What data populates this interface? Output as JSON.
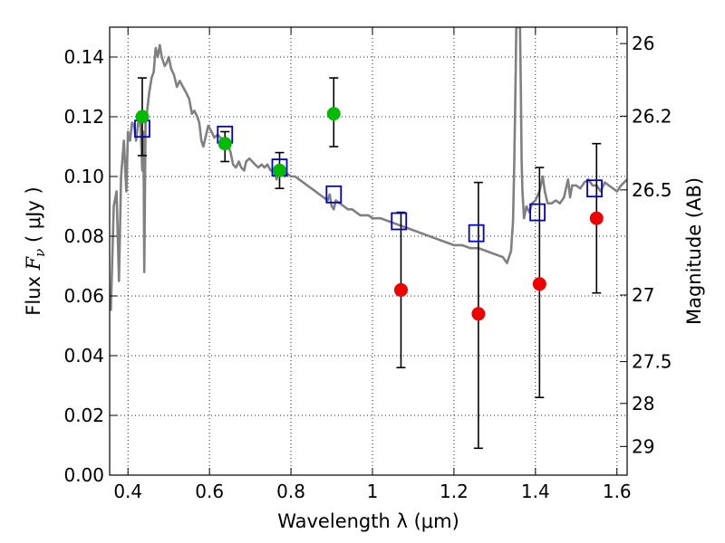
{
  "chart_data": {
    "type": "scatter",
    "xlabel": "Wavelength  λ (μm)",
    "ylabel": "Flux  F_ν  ( μJy )",
    "ylabel_parts": {
      "prefix": "Flux ",
      "symbol": "F",
      "subscript": "ν",
      "suffix": " ( μJy )"
    },
    "y2label": "Magnitude (AB)",
    "xlim": [
      0.355,
      1.625
    ],
    "ylim": [
      0.0,
      0.15
    ],
    "grid": true,
    "x_ticks": [
      {
        "value": 0.4,
        "label": "0.4"
      },
      {
        "value": 0.6,
        "label": "0.6"
      },
      {
        "value": 0.8,
        "label": "0.8"
      },
      {
        "value": 1.0,
        "label": "1"
      },
      {
        "value": 1.2,
        "label": "1.2"
      },
      {
        "value": 1.4,
        "label": "1.4"
      },
      {
        "value": 1.6,
        "label": "1.6"
      }
    ],
    "y_ticks": [
      {
        "value": 0.0,
        "label": "0.00"
      },
      {
        "value": 0.02,
        "label": "0.02"
      },
      {
        "value": 0.04,
        "label": "0.04"
      },
      {
        "value": 0.06,
        "label": "0.06"
      },
      {
        "value": 0.08,
        "label": "0.08"
      },
      {
        "value": 0.1,
        "label": "0.10"
      },
      {
        "value": 0.12,
        "label": "0.12"
      },
      {
        "value": 0.14,
        "label": "0.14"
      }
    ],
    "y2_ticks": [
      {
        "flux": 0.1445,
        "label": "26"
      },
      {
        "flux": 0.1202,
        "label": "26.2"
      },
      {
        "flux": 0.0955,
        "label": "26.5"
      },
      {
        "flux": 0.0603,
        "label": "27"
      },
      {
        "flux": 0.038,
        "label": "27.5"
      },
      {
        "flux": 0.024,
        "label": "28"
      },
      {
        "flux": 0.0096,
        "label": "29"
      }
    ],
    "series": [
      {
        "kind": "line",
        "color": "#808080",
        "points": [
          [
            0.358,
            0.055
          ],
          [
            0.365,
            0.09
          ],
          [
            0.372,
            0.095
          ],
          [
            0.378,
            0.065
          ],
          [
            0.383,
            0.1
          ],
          [
            0.39,
            0.112
          ],
          [
            0.396,
            0.095
          ],
          [
            0.4,
            0.115
          ],
          [
            0.405,
            0.112
          ],
          [
            0.41,
            0.118
          ],
          [
            0.415,
            0.117
          ],
          [
            0.42,
            0.112
          ],
          [
            0.425,
            0.118
          ],
          [
            0.43,
            0.12
          ],
          [
            0.435,
            0.102
          ],
          [
            0.438,
            0.115
          ],
          [
            0.44,
            0.068
          ],
          [
            0.443,
            0.118
          ],
          [
            0.447,
            0.122
          ],
          [
            0.452,
            0.128
          ],
          [
            0.458,
            0.133
          ],
          [
            0.463,
            0.135
          ],
          [
            0.468,
            0.143
          ],
          [
            0.473,
            0.14
          ],
          [
            0.478,
            0.144
          ],
          [
            0.483,
            0.14
          ],
          [
            0.49,
            0.137
          ],
          [
            0.495,
            0.138
          ],
          [
            0.5,
            0.14
          ],
          [
            0.506,
            0.136
          ],
          [
            0.513,
            0.134
          ],
          [
            0.52,
            0.13
          ],
          [
            0.527,
            0.132
          ],
          [
            0.535,
            0.13
          ],
          [
            0.543,
            0.128
          ],
          [
            0.55,
            0.126
          ],
          [
            0.557,
            0.121
          ],
          [
            0.563,
            0.122
          ],
          [
            0.57,
            0.12
          ],
          [
            0.575,
            0.118
          ],
          [
            0.58,
            0.112
          ],
          [
            0.585,
            0.11
          ],
          [
            0.59,
            0.113
          ],
          [
            0.597,
            0.117
          ],
          [
            0.605,
            0.115
          ],
          [
            0.612,
            0.113
          ],
          [
            0.62,
            0.114
          ],
          [
            0.627,
            0.113
          ],
          [
            0.633,
            0.112
          ],
          [
            0.64,
            0.113
          ],
          [
            0.645,
            0.111
          ],
          [
            0.652,
            0.108
          ],
          [
            0.658,
            0.104
          ],
          [
            0.665,
            0.103
          ],
          [
            0.672,
            0.105
          ],
          [
            0.678,
            0.103
          ],
          [
            0.685,
            0.102
          ],
          [
            0.69,
            0.105
          ],
          [
            0.698,
            0.106
          ],
          [
            0.705,
            0.105
          ],
          [
            0.712,
            0.104
          ],
          [
            0.72,
            0.103
          ],
          [
            0.728,
            0.104
          ],
          [
            0.735,
            0.103
          ],
          [
            0.742,
            0.104
          ],
          [
            0.75,
            0.102
          ],
          [
            0.758,
            0.102
          ],
          [
            0.765,
            0.099
          ],
          [
            0.77,
            0.103
          ],
          [
            0.778,
            0.101
          ],
          [
            0.785,
            0.1
          ],
          [
            0.79,
            0.101
          ],
          [
            0.8,
            0.1
          ],
          [
            0.81,
            0.1
          ],
          [
            0.82,
            0.099
          ],
          [
            0.83,
            0.098
          ],
          [
            0.84,
            0.097
          ],
          [
            0.85,
            0.096
          ],
          [
            0.86,
            0.095
          ],
          [
            0.87,
            0.094
          ],
          [
            0.88,
            0.093
          ],
          [
            0.89,
            0.092
          ],
          [
            0.895,
            0.094
          ],
          [
            0.9,
            0.09
          ],
          [
            0.905,
            0.089
          ],
          [
            0.91,
            0.092
          ],
          [
            0.92,
            0.091
          ],
          [
            0.93,
            0.09
          ],
          [
            0.94,
            0.089
          ],
          [
            0.95,
            0.089
          ],
          [
            0.96,
            0.088
          ],
          [
            0.97,
            0.087
          ],
          [
            0.98,
            0.087
          ],
          [
            0.99,
            0.087
          ],
          [
            1.0,
            0.086
          ],
          [
            1.02,
            0.086
          ],
          [
            1.04,
            0.085
          ],
          [
            1.06,
            0.084
          ],
          [
            1.08,
            0.083
          ],
          [
            1.1,
            0.082
          ],
          [
            1.12,
            0.081
          ],
          [
            1.14,
            0.08
          ],
          [
            1.16,
            0.079
          ],
          [
            1.18,
            0.078
          ],
          [
            1.2,
            0.077
          ],
          [
            1.22,
            0.077
          ],
          [
            1.24,
            0.076
          ],
          [
            1.26,
            0.076
          ],
          [
            1.28,
            0.075
          ],
          [
            1.3,
            0.074
          ],
          [
            1.32,
            0.073
          ],
          [
            1.33,
            0.071
          ],
          [
            1.34,
            0.075
          ],
          [
            1.345,
            0.085
          ],
          [
            1.348,
            0.105
          ],
          [
            1.351,
            0.13
          ],
          [
            1.353,
            0.15
          ],
          [
            1.362,
            0.15
          ],
          [
            1.364,
            0.13
          ],
          [
            1.366,
            0.105
          ],
          [
            1.368,
            0.095
          ],
          [
            1.372,
            0.086
          ],
          [
            1.378,
            0.09
          ],
          [
            1.385,
            0.088
          ],
          [
            1.392,
            0.091
          ],
          [
            1.4,
            0.092
          ],
          [
            1.41,
            0.095
          ],
          [
            1.418,
            0.1
          ],
          [
            1.423,
            0.095
          ],
          [
            1.43,
            0.091
          ],
          [
            1.44,
            0.091
          ],
          [
            1.45,
            0.092
          ],
          [
            1.46,
            0.091
          ],
          [
            1.47,
            0.093
          ],
          [
            1.48,
            0.099
          ],
          [
            1.485,
            0.093
          ],
          [
            1.49,
            0.097
          ],
          [
            1.5,
            0.097
          ],
          [
            1.51,
            0.096
          ],
          [
            1.52,
            0.098
          ],
          [
            1.53,
            0.099
          ],
          [
            1.54,
            0.097
          ],
          [
            1.55,
            0.097
          ],
          [
            1.56,
            0.095
          ],
          [
            1.57,
            0.098
          ],
          [
            1.58,
            0.097
          ],
          [
            1.59,
            0.096
          ],
          [
            1.6,
            0.095
          ],
          [
            1.61,
            0.097
          ],
          [
            1.625,
            0.099
          ]
        ]
      },
      {
        "kind": "markers",
        "marker": "open-square",
        "color": "#0000cc",
        "points": [
          [
            0.435,
            0.116
          ],
          [
            0.638,
            0.114
          ],
          [
            0.772,
            0.103
          ],
          [
            0.905,
            0.094
          ],
          [
            1.065,
            0.085
          ],
          [
            1.255,
            0.081
          ],
          [
            1.405,
            0.088
          ],
          [
            1.545,
            0.096
          ]
        ]
      },
      {
        "kind": "markers",
        "marker": "filled-circle",
        "color": "#00bb00",
        "points": [
          {
            "x": 0.435,
            "y": 0.12,
            "err_low": 0.107,
            "err_high": 0.133
          },
          {
            "x": 0.638,
            "y": 0.111,
            "err_low": 0.105,
            "err_high": 0.115
          },
          {
            "x": 0.772,
            "y": 0.102,
            "err_low": 0.096,
            "err_high": 0.108
          },
          {
            "x": 0.905,
            "y": 0.121,
            "err_low": 0.11,
            "err_high": 0.133
          }
        ]
      },
      {
        "kind": "markers",
        "marker": "filled-circle",
        "color": "#ee0000",
        "points": [
          {
            "x": 1.07,
            "y": 0.062,
            "err_low": 0.036,
            "err_high": 0.088
          },
          {
            "x": 1.26,
            "y": 0.054,
            "err_low": 0.009,
            "err_high": 0.098
          },
          {
            "x": 1.41,
            "y": 0.064,
            "err_low": 0.026,
            "err_high": 0.103
          },
          {
            "x": 1.55,
            "y": 0.086,
            "err_low": 0.061,
            "err_high": 0.111
          }
        ]
      }
    ]
  }
}
